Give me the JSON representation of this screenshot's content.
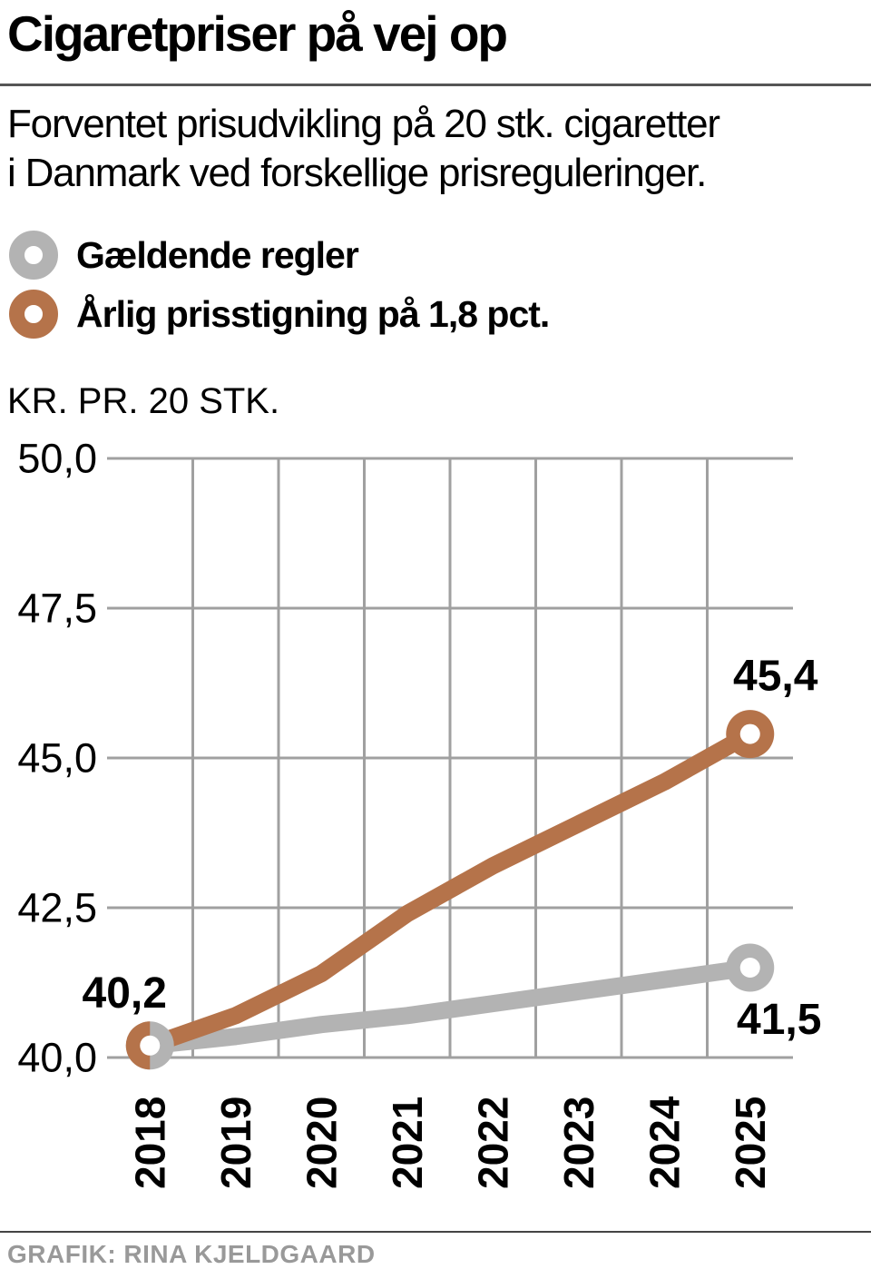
{
  "title": "Cigaretpriser på vej op",
  "subtitle": {
    "line1": "Forventet prisudvikling på 20 stk. cigaretter",
    "line2": "i Danmark ved forskellige prisreguleringer."
  },
  "legend": {
    "items": [
      {
        "label": "Gældende regler",
        "color": "#b3b3b3"
      },
      {
        "label": "Årlig prisstigning på 1,8 pct.",
        "color": "#b5734a"
      }
    ]
  },
  "y_axis_unit": "KR. PR. 20 STK.",
  "footer": {
    "credit": "GRAFIK: RINA KJELDGAARD"
  },
  "colors": {
    "grid": "#a0a0a0",
    "title_divider": "#565656",
    "footer_divider": "#444444",
    "footer_text": "#999999",
    "text": "#000000"
  },
  "chart_data": {
    "type": "line",
    "x": [
      "2018",
      "2019",
      "2020",
      "2021",
      "2022",
      "2023",
      "2024",
      "2025"
    ],
    "series": [
      {
        "name": "Gældende regler",
        "color": "#b3b3b3",
        "values": [
          40.2,
          40.35,
          40.55,
          40.7,
          40.9,
          41.1,
          41.3,
          41.5
        ]
      },
      {
        "name": "Årlig prisstigning på 1,8 pct.",
        "color": "#b5734a",
        "values": [
          40.2,
          40.7,
          41.4,
          42.4,
          43.2,
          43.9,
          44.6,
          45.4
        ]
      }
    ],
    "ylabel": "KR. PR. 20 STK.",
    "ylim": [
      40.0,
      50.0
    ],
    "yticks": [
      40.0,
      42.5,
      45.0,
      47.5,
      50.0
    ],
    "ytick_labels": [
      "40,0",
      "42,5",
      "45,0",
      "47,5",
      "50,0"
    ],
    "point_labels": [
      {
        "text": "40,2",
        "x_index": 0,
        "series": "both",
        "position": "above-left"
      },
      {
        "text": "45,4",
        "x_index": 7,
        "series": 1,
        "position": "above"
      },
      {
        "text": "41,5",
        "x_index": 7,
        "series": 0,
        "position": "below"
      }
    ],
    "grid": true,
    "legend_position": "top-left",
    "marker_style": "ring-endpoints"
  }
}
